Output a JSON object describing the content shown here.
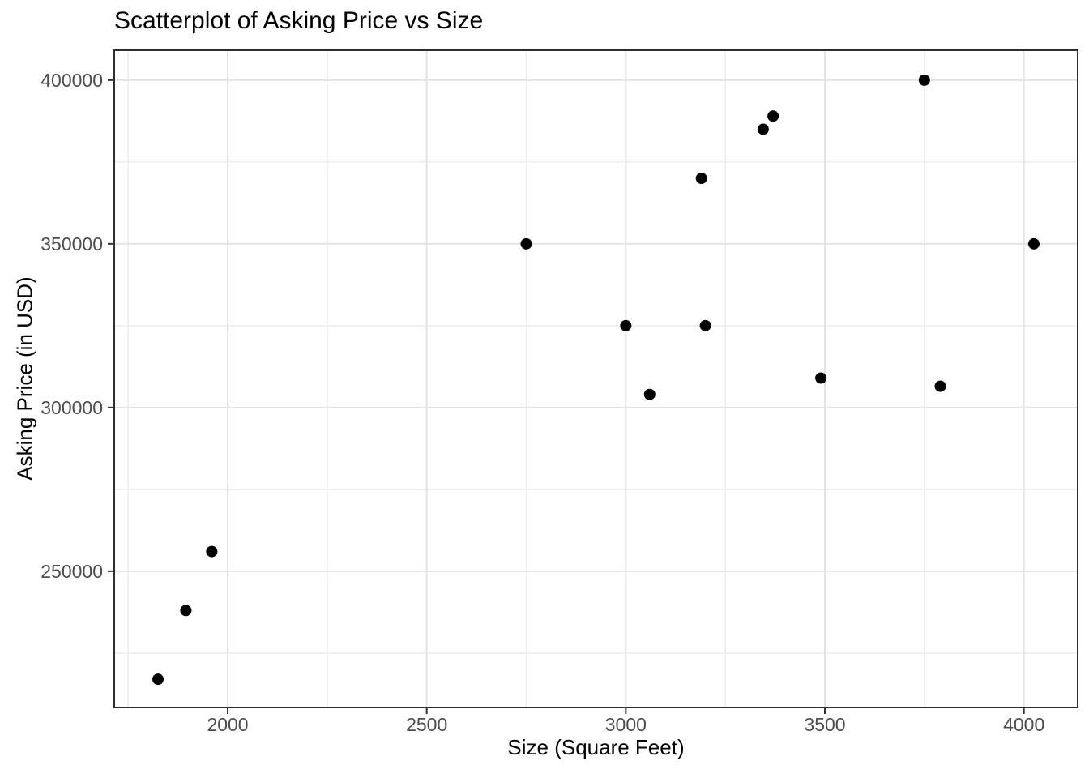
{
  "chart_data": {
    "type": "scatter",
    "title": "Scatterplot of Asking Price vs Size",
    "xlabel": "Size (Square Feet)",
    "ylabel": "Asking Price (in USD)",
    "xlim": [
      1715,
      4135
    ],
    "ylim": [
      208375,
      409125
    ],
    "x_ticks": [
      2000,
      2500,
      3000,
      3500,
      4000
    ],
    "x_minor_ticks": [
      1750,
      2250,
      2750,
      3250,
      3750
    ],
    "y_ticks": [
      250000,
      300000,
      350000,
      400000
    ],
    "y_minor_ticks": [
      225000,
      275000,
      325000,
      375000
    ],
    "grid": "major-and-minor",
    "legend": "none",
    "points": [
      {
        "size": 1825,
        "price": 217000
      },
      {
        "size": 1895,
        "price": 238000
      },
      {
        "size": 1960,
        "price": 256000
      },
      {
        "size": 2750,
        "price": 350000
      },
      {
        "size": 3000,
        "price": 325000
      },
      {
        "size": 3060,
        "price": 304000
      },
      {
        "size": 3190,
        "price": 370000
      },
      {
        "size": 3200,
        "price": 325000
      },
      {
        "size": 3345,
        "price": 385000
      },
      {
        "size": 3370,
        "price": 389000
      },
      {
        "size": 3490,
        "price": 309000
      },
      {
        "size": 3750,
        "price": 400000
      },
      {
        "size": 3790,
        "price": 306500
      },
      {
        "size": 4025,
        "price": 350000
      }
    ]
  },
  "style": {
    "point_color": "#000000",
    "point_radius": 7,
    "grid_major_color": "#e4e4e4",
    "grid_minor_color": "#ededed",
    "panel_border_color": "#2e2e2e",
    "tick_color": "#333333",
    "tick_label_color": "#4d4d4d",
    "title_color": "#000000",
    "background_color": "#ffffff"
  }
}
